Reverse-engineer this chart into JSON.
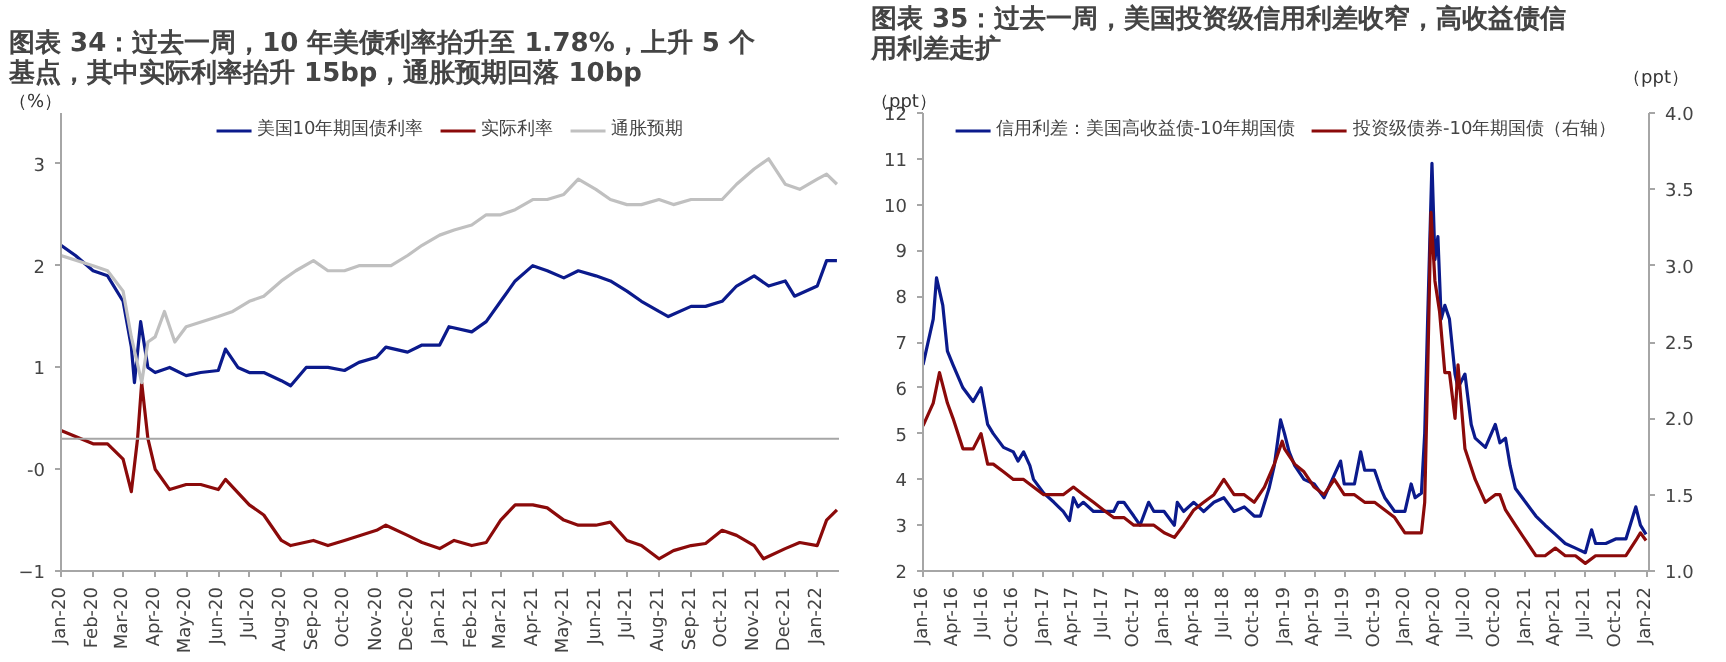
{
  "chart_data": [
    {
      "type": "line",
      "title": "图表 34：过去一周，10 年美债利率抬升至 1.78%，上升 5 个基点，其中实际利率抬升 15bp，通胀预期回落 10bp",
      "ylabel": "（%）",
      "legend": "top",
      "xlim": [
        "2020-01-01",
        "2022-01-22"
      ],
      "xticks": [
        {
          "value": "2020-01",
          "label": "Jan-20"
        },
        {
          "value": "2020-02",
          "label": "Feb-20"
        },
        {
          "value": "2020-03",
          "label": "Mar-20"
        },
        {
          "value": "2020-04",
          "label": "Apr-20"
        },
        {
          "value": "2020-05",
          "label": "May-20"
        },
        {
          "value": "2020-06",
          "label": "Jun-20"
        },
        {
          "value": "2020-07",
          "label": "Jul-20"
        },
        {
          "value": "2020-08",
          "label": "Aug-20"
        },
        {
          "value": "2020-09",
          "label": "Sep-20"
        },
        {
          "value": "2020-10",
          "label": "Oct-20"
        },
        {
          "value": "2020-11",
          "label": "Nov-20"
        },
        {
          "value": "2020-12",
          "label": "Dec-20"
        },
        {
          "value": "2021-01",
          "label": "Jan-21"
        },
        {
          "value": "2021-02",
          "label": "Feb-21"
        },
        {
          "value": "2021-03",
          "label": "Mar-21"
        },
        {
          "value": "2021-04",
          "label": "Apr-21"
        },
        {
          "value": "2021-05",
          "label": "May-21"
        },
        {
          "value": "2021-06",
          "label": "Jun-21"
        },
        {
          "value": "2021-07",
          "label": "Jul-21"
        },
        {
          "value": "2021-08",
          "label": "Aug-21"
        },
        {
          "value": "2021-09",
          "label": "Sep-21"
        },
        {
          "value": "2021-10",
          "label": "Oct-21"
        },
        {
          "value": "2021-11",
          "label": "Nov-21"
        },
        {
          "value": "2021-12",
          "label": "Dec-21"
        },
        {
          "value": "2022-01",
          "label": "Jan-22"
        }
      ],
      "ylim": [
        -1,
        3.5
      ],
      "yticks": [
        -1,
        {
          "value": 0,
          "label": "-0"
        },
        1,
        2,
        3
      ],
      "ref_lines": [
        {
          "axis": "y",
          "value": 0.3,
          "color": "#a6a6a6"
        }
      ],
      "series": [
        {
          "name": "美国10年期国债利率",
          "color": "#0b1a8c",
          "x": [
            "2020-01-01",
            "2020-01-15",
            "2020-02-01",
            "2020-02-15",
            "2020-03-01",
            "2020-03-09",
            "2020-03-12",
            "2020-03-18",
            "2020-03-25",
            "2020-04-01",
            "2020-04-15",
            "2020-05-01",
            "2020-05-15",
            "2020-06-01",
            "2020-06-08",
            "2020-06-20",
            "2020-07-01",
            "2020-07-15",
            "2020-08-01",
            "2020-08-10",
            "2020-08-25",
            "2020-09-15",
            "2020-10-01",
            "2020-10-15",
            "2020-11-01",
            "2020-11-10",
            "2020-12-01",
            "2020-12-15",
            "2021-01-01",
            "2021-01-10",
            "2021-02-01",
            "2021-02-15",
            "2021-03-01",
            "2021-03-15",
            "2021-04-01",
            "2021-04-15",
            "2021-05-01",
            "2021-05-15",
            "2021-06-01",
            "2021-06-15",
            "2021-07-01",
            "2021-07-15",
            "2021-08-01",
            "2021-08-10",
            "2021-09-01",
            "2021-09-15",
            "2021-10-01",
            "2021-10-15",
            "2021-11-01",
            "2021-11-15",
            "2021-12-01",
            "2021-12-10",
            "2022-01-01",
            "2022-01-10",
            "2022-01-20"
          ],
          "values": [
            2.2,
            2.1,
            1.95,
            1.9,
            1.65,
            1.2,
            0.85,
            1.45,
            1.0,
            0.95,
            1.0,
            0.92,
            0.95,
            0.97,
            1.18,
            1.0,
            0.95,
            0.95,
            0.87,
            0.82,
            1.0,
            1.0,
            0.97,
            1.05,
            1.1,
            1.2,
            1.15,
            1.22,
            1.22,
            1.4,
            1.35,
            1.45,
            1.65,
            1.85,
            2.0,
            1.95,
            1.88,
            1.95,
            1.9,
            1.85,
            1.75,
            1.65,
            1.55,
            1.5,
            1.6,
            1.6,
            1.65,
            1.8,
            1.9,
            1.8,
            1.85,
            1.7,
            1.8,
            2.05,
            2.05
          ]
        },
        {
          "name": "实际利率",
          "color": "#8b0a0a",
          "x": [
            "2020-01-01",
            "2020-02-01",
            "2020-02-15",
            "2020-03-01",
            "2020-03-09",
            "2020-03-15",
            "2020-03-19",
            "2020-03-25",
            "2020-04-01",
            "2020-04-15",
            "2020-05-01",
            "2020-05-15",
            "2020-06-01",
            "2020-06-08",
            "2020-07-01",
            "2020-07-15",
            "2020-08-01",
            "2020-08-10",
            "2020-09-01",
            "2020-09-15",
            "2020-10-01",
            "2020-11-01",
            "2020-11-10",
            "2020-12-01",
            "2020-12-15",
            "2021-01-01",
            "2021-01-15",
            "2021-02-01",
            "2021-02-15",
            "2021-03-01",
            "2021-03-15",
            "2021-04-01",
            "2021-04-15",
            "2021-05-01",
            "2021-05-15",
            "2021-06-01",
            "2021-06-15",
            "2021-07-01",
            "2021-07-15",
            "2021-08-01",
            "2021-08-15",
            "2021-09-01",
            "2021-09-15",
            "2021-10-01",
            "2021-10-15",
            "2021-11-01",
            "2021-11-10",
            "2021-12-01",
            "2021-12-15",
            "2022-01-01",
            "2022-01-10",
            "2022-01-20"
          ],
          "values": [
            0.38,
            0.25,
            0.25,
            0.1,
            -0.22,
            0.3,
            0.85,
            0.3,
            0.0,
            -0.2,
            -0.15,
            -0.15,
            -0.2,
            -0.1,
            -0.35,
            -0.45,
            -0.7,
            -0.75,
            -0.7,
            -0.75,
            -0.7,
            -0.6,
            -0.55,
            -0.65,
            -0.72,
            -0.78,
            -0.7,
            -0.75,
            -0.72,
            -0.5,
            -0.35,
            -0.35,
            -0.38,
            -0.5,
            -0.55,
            -0.55,
            -0.52,
            -0.7,
            -0.75,
            -0.88,
            -0.8,
            -0.75,
            -0.73,
            -0.6,
            -0.65,
            -0.75,
            -0.88,
            -0.78,
            -0.72,
            -0.75,
            -0.5,
            -0.4
          ]
        },
        {
          "name": "通胀预期",
          "color": "#c0c0c0",
          "x": [
            "2020-01-01",
            "2020-02-01",
            "2020-02-15",
            "2020-03-01",
            "2020-03-09",
            "2020-03-19",
            "2020-03-25",
            "2020-04-01",
            "2020-04-10",
            "2020-04-20",
            "2020-05-01",
            "2020-06-01",
            "2020-06-15",
            "2020-07-01",
            "2020-07-15",
            "2020-08-01",
            "2020-08-15",
            "2020-09-01",
            "2020-09-15",
            "2020-10-01",
            "2020-10-15",
            "2020-11-01",
            "2020-11-15",
            "2020-12-01",
            "2020-12-15",
            "2021-01-01",
            "2021-01-15",
            "2021-02-01",
            "2021-02-15",
            "2021-03-01",
            "2021-03-15",
            "2021-04-01",
            "2021-04-15",
            "2021-05-01",
            "2021-05-15",
            "2021-06-01",
            "2021-06-15",
            "2021-07-01",
            "2021-07-15",
            "2021-08-01",
            "2021-08-15",
            "2021-09-01",
            "2021-09-15",
            "2021-10-01",
            "2021-10-15",
            "2021-11-01",
            "2021-11-15",
            "2021-12-01",
            "2021-12-15",
            "2022-01-01",
            "2022-01-10",
            "2022-01-20"
          ],
          "values": [
            2.1,
            2.0,
            1.95,
            1.75,
            1.3,
            0.85,
            1.25,
            1.3,
            1.55,
            1.25,
            1.4,
            1.5,
            1.55,
            1.65,
            1.7,
            1.85,
            1.95,
            2.05,
            1.95,
            1.95,
            2.0,
            2.0,
            2.0,
            2.1,
            2.2,
            2.3,
            2.35,
            2.4,
            2.5,
            2.5,
            2.55,
            2.65,
            2.65,
            2.7,
            2.85,
            2.75,
            2.65,
            2.6,
            2.6,
            2.65,
            2.6,
            2.65,
            2.65,
            2.65,
            2.8,
            2.95,
            3.05,
            2.8,
            2.75,
            2.85,
            2.9,
            2.8
          ]
        }
      ]
    },
    {
      "type": "line",
      "title": "图表 35：过去一周，美国投资级信用利差收窄，高收益债信用利差走扩",
      "ylabel": "（ppt）",
      "y2label": "（ppt）",
      "legend": "top",
      "xlim": [
        "2016-01-01",
        "2022-01-10"
      ],
      "xticks": [
        {
          "value": "2016-01",
          "label": "Jan-16"
        },
        {
          "value": "2016-04",
          "label": "Apr-16"
        },
        {
          "value": "2016-07",
          "label": "Jul-16"
        },
        {
          "value": "2016-10",
          "label": "Oct-16"
        },
        {
          "value": "2017-01",
          "label": "Jan-17"
        },
        {
          "value": "2017-04",
          "label": "Apr-17"
        },
        {
          "value": "2017-07",
          "label": "Jul-17"
        },
        {
          "value": "2017-10",
          "label": "Oct-17"
        },
        {
          "value": "2018-01",
          "label": "Jan-18"
        },
        {
          "value": "2018-04",
          "label": "Apr-18"
        },
        {
          "value": "2018-07",
          "label": "Jul-18"
        },
        {
          "value": "2018-10",
          "label": "Oct-18"
        },
        {
          "value": "2019-01",
          "label": "Jan-19"
        },
        {
          "value": "2019-04",
          "label": "Apr-19"
        },
        {
          "value": "2019-07",
          "label": "Jul-19"
        },
        {
          "value": "2019-10",
          "label": "Oct-19"
        },
        {
          "value": "2020-01",
          "label": "Jan-20"
        },
        {
          "value": "2020-04",
          "label": "Apr-20"
        },
        {
          "value": "2020-07",
          "label": "Jul-20"
        },
        {
          "value": "2020-10",
          "label": "Oct-20"
        },
        {
          "value": "2021-01",
          "label": "Jan-21"
        },
        {
          "value": "2021-04",
          "label": "Apr-21"
        },
        {
          "value": "2021-07",
          "label": "Jul-21"
        },
        {
          "value": "2021-10",
          "label": "Oct-21"
        },
        {
          "value": "2022-01",
          "label": "Jan-22"
        }
      ],
      "ylim": [
        2,
        12
      ],
      "yticks": [
        2,
        3,
        4,
        5,
        6,
        7,
        8,
        9,
        10,
        11,
        12
      ],
      "y2lim": [
        1,
        4
      ],
      "y2ticks": [
        {
          "value": 1,
          "label": "1.0"
        },
        1.5,
        {
          "value": 2,
          "label": "2.0"
        },
        2.5,
        {
          "value": 3,
          "label": "3.0"
        },
        3.5,
        {
          "value": 4,
          "label": "4.0"
        }
      ],
      "series": [
        {
          "name": "信用利差：美国高收益债-10年期国债",
          "color": "#0b1a8c",
          "x": [
            "2016-01-01",
            "2016-02-01",
            "2016-02-11",
            "2016-03-01",
            "2016-03-15",
            "2016-04-01",
            "2016-05-01",
            "2016-06-01",
            "2016-06-25",
            "2016-07-15",
            "2016-08-01",
            "2016-09-01",
            "2016-10-01",
            "2016-10-15",
            "2016-11-01",
            "2016-11-20",
            "2016-12-01",
            "2017-01-01",
            "2017-02-01",
            "2017-03-01",
            "2017-03-20",
            "2017-04-01",
            "2017-04-15",
            "2017-05-01",
            "2017-06-01",
            "2017-07-01",
            "2017-08-01",
            "2017-08-15",
            "2017-09-01",
            "2017-10-01",
            "2017-10-20",
            "2017-11-15",
            "2017-12-01",
            "2018-01-01",
            "2018-02-01",
            "2018-02-10",
            "2018-03-01",
            "2018-04-01",
            "2018-05-01",
            "2018-06-01",
            "2018-07-01",
            "2018-08-01",
            "2018-09-01",
            "2018-10-01",
            "2018-10-20",
            "2018-11-15",
            "2018-12-01",
            "2018-12-20",
            "2019-01-01",
            "2019-01-15",
            "2019-02-01",
            "2019-03-01",
            "2019-04-01",
            "2019-05-01",
            "2019-06-01",
            "2019-06-20",
            "2019-07-01",
            "2019-08-01",
            "2019-08-20",
            "2019-09-01",
            "2019-10-01",
            "2019-10-20",
            "2019-11-01",
            "2019-12-01",
            "2020-01-01",
            "2020-01-20",
            "2020-02-01",
            "2020-02-20",
            "2020-03-01",
            "2020-03-10",
            "2020-03-23",
            "2020-04-01",
            "2020-04-10",
            "2020-04-20",
            "2020-05-01",
            "2020-05-15",
            "2020-06-01",
            "2020-06-10",
            "2020-07-01",
            "2020-07-20",
            "2020-08-01",
            "2020-09-01",
            "2020-10-01",
            "2020-10-15",
            "2020-11-01",
            "2020-11-15",
            "2020-12-01",
            "2021-01-01",
            "2021-02-01",
            "2021-03-01",
            "2021-04-01",
            "2021-05-01",
            "2021-06-01",
            "2021-07-01",
            "2021-07-20",
            "2021-08-01",
            "2021-09-01",
            "2021-10-01",
            "2021-11-01",
            "2021-12-01",
            "2021-12-15",
            "2022-01-01"
          ],
          "values": [
            6.5,
            7.5,
            8.4,
            7.8,
            6.8,
            6.5,
            6.0,
            5.7,
            6.0,
            5.2,
            5.0,
            4.7,
            4.6,
            4.4,
            4.6,
            4.3,
            4.0,
            3.7,
            3.5,
            3.3,
            3.1,
            3.6,
            3.4,
            3.5,
            3.3,
            3.3,
            3.3,
            3.5,
            3.5,
            3.2,
            3.0,
            3.5,
            3.3,
            3.3,
            3.0,
            3.5,
            3.3,
            3.5,
            3.3,
            3.5,
            3.6,
            3.3,
            3.4,
            3.2,
            3.2,
            3.8,
            4.3,
            5.3,
            5.0,
            4.6,
            4.3,
            4.0,
            3.9,
            3.6,
            4.1,
            4.4,
            3.9,
            3.9,
            4.6,
            4.2,
            4.2,
            3.8,
            3.6,
            3.3,
            3.3,
            3.9,
            3.6,
            3.7,
            5.0,
            7.5,
            10.9,
            8.8,
            9.3,
            7.5,
            7.8,
            7.5,
            6.3,
            6.0,
            6.3,
            5.2,
            4.9,
            4.7,
            5.2,
            4.8,
            4.9,
            4.3,
            3.8,
            3.5,
            3.2,
            3.0,
            2.8,
            2.6,
            2.5,
            2.4,
            2.9,
            2.6,
            2.6,
            2.7,
            2.7,
            3.4,
            3.0,
            2.8
          ]
        },
        {
          "name": "投资级债券-10年期国债（右轴）",
          "color": "#8b0a0a",
          "axis": "y2",
          "x": [
            "2016-01-01",
            "2016-02-01",
            "2016-02-20",
            "2016-03-15",
            "2016-04-01",
            "2016-05-01",
            "2016-06-01",
            "2016-06-25",
            "2016-07-15",
            "2016-08-01",
            "2016-09-01",
            "2016-10-01",
            "2016-11-01",
            "2016-12-01",
            "2017-01-01",
            "2017-02-01",
            "2017-03-01",
            "2017-04-01",
            "2017-05-01",
            "2017-06-01",
            "2017-07-01",
            "2017-08-01",
            "2017-09-01",
            "2017-10-01",
            "2017-11-01",
            "2017-12-01",
            "2018-01-01",
            "2018-02-01",
            "2018-03-01",
            "2018-04-01",
            "2018-05-01",
            "2018-06-01",
            "2018-07-01",
            "2018-08-01",
            "2018-09-01",
            "2018-10-01",
            "2018-11-01",
            "2018-12-01",
            "2018-12-25",
            "2019-01-01",
            "2019-02-01",
            "2019-03-01",
            "2019-04-01",
            "2019-05-01",
            "2019-06-01",
            "2019-07-01",
            "2019-08-01",
            "2019-09-01",
            "2019-10-01",
            "2019-11-01",
            "2019-12-01",
            "2020-01-01",
            "2020-02-01",
            "2020-02-20",
            "2020-03-01",
            "2020-03-10",
            "2020-03-20",
            "2020-04-01",
            "2020-04-15",
            "2020-05-01",
            "2020-05-15",
            "2020-06-01",
            "2020-06-10",
            "2020-07-01",
            "2020-08-01",
            "2020-09-01",
            "2020-10-01",
            "2020-10-15",
            "2020-11-01",
            "2020-12-01",
            "2021-01-01",
            "2021-02-01",
            "2021-03-01",
            "2021-04-01",
            "2021-05-01",
            "2021-06-01",
            "2021-07-01",
            "2021-08-01",
            "2021-09-01",
            "2021-10-01",
            "2021-11-01",
            "2021-12-01",
            "2021-12-15",
            "2022-01-01"
          ],
          "values": [
            1.95,
            2.1,
            2.3,
            2.1,
            2.0,
            1.8,
            1.8,
            1.9,
            1.7,
            1.7,
            1.65,
            1.6,
            1.6,
            1.55,
            1.5,
            1.5,
            1.5,
            1.55,
            1.5,
            1.45,
            1.4,
            1.35,
            1.35,
            1.3,
            1.3,
            1.3,
            1.25,
            1.22,
            1.3,
            1.4,
            1.45,
            1.5,
            1.6,
            1.5,
            1.5,
            1.45,
            1.55,
            1.7,
            1.85,
            1.8,
            1.7,
            1.65,
            1.55,
            1.5,
            1.6,
            1.5,
            1.5,
            1.45,
            1.45,
            1.4,
            1.35,
            1.25,
            1.25,
            1.25,
            1.45,
            2.3,
            3.35,
            2.9,
            2.7,
            2.3,
            2.3,
            2.0,
            2.35,
            1.8,
            1.6,
            1.45,
            1.5,
            1.5,
            1.4,
            1.3,
            1.2,
            1.1,
            1.1,
            1.15,
            1.1,
            1.1,
            1.05,
            1.1,
            1.1,
            1.1,
            1.1,
            1.2,
            1.25,
            1.2
          ]
        }
      ]
    }
  ]
}
